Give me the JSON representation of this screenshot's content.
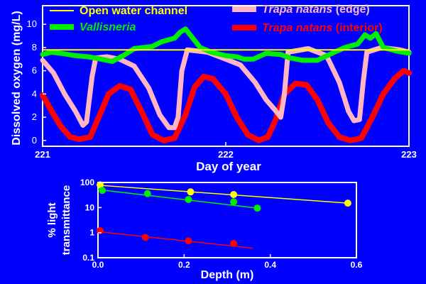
{
  "colors": {
    "background": "#0000ff",
    "axis": "#ffffff",
    "open_water": "#ffff00",
    "vallisneria": "#00ee00",
    "trapa_edge": "#ffb6c1",
    "trapa_interior": "#ff0000"
  },
  "chart_data": [
    {
      "type": "line",
      "xlabel": "Day of year",
      "ylabel": "Dissolved oxygen (mg/L)",
      "xlim": [
        221,
        223
      ],
      "ylim": [
        -0.5,
        11.6
      ],
      "xticks": [
        "221",
        "222",
        "223"
      ],
      "yticks": [
        "0",
        "2",
        "4",
        "6",
        "8",
        "10"
      ],
      "legend_position": "top",
      "legend": [
        {
          "key": "open",
          "name": "Open water channel",
          "italic_part": "",
          "rest": ""
        },
        {
          "key": "vall",
          "name": "",
          "italic_part": "Vallisneria",
          "rest": ""
        },
        {
          "key": "edge",
          "name": "",
          "italic_part": "Trapa natans",
          "rest": " (edge)"
        },
        {
          "key": "interior",
          "name": "",
          "italic_part": "Trapa natans",
          "rest": " (interior)"
        }
      ],
      "series": [
        {
          "key": "open",
          "name": "Open water channel",
          "points": [
            [
              221.0,
              7.8
            ],
            [
              223.0,
              7.8
            ]
          ]
        },
        {
          "key": "vall",
          "name": "Vallisneria",
          "points": [
            [
              221.0,
              7.4
            ],
            [
              221.05,
              7.6
            ],
            [
              221.1,
              7.5
            ],
            [
              221.18,
              7.3
            ],
            [
              221.25,
              7.2
            ],
            [
              221.32,
              7.0
            ],
            [
              221.38,
              6.8
            ],
            [
              221.44,
              7.3
            ],
            [
              221.5,
              7.9
            ],
            [
              221.6,
              8.1
            ],
            [
              221.65,
              8.5
            ],
            [
              221.72,
              8.8
            ],
            [
              221.75,
              9.3
            ],
            [
              221.78,
              9.6
            ],
            [
              221.82,
              8.8
            ],
            [
              221.86,
              8.0
            ],
            [
              221.92,
              7.6
            ],
            [
              222.0,
              7.3
            ],
            [
              222.06,
              7.2
            ],
            [
              222.1,
              7.0
            ],
            [
              222.15,
              7.0
            ],
            [
              222.22,
              7.5
            ],
            [
              222.3,
              7.4
            ],
            [
              222.35,
              7.1
            ],
            [
              222.42,
              6.9
            ],
            [
              222.5,
              6.9
            ],
            [
              222.58,
              7.5
            ],
            [
              222.65,
              8.0
            ],
            [
              222.72,
              8.3
            ],
            [
              222.76,
              9.1
            ],
            [
              222.79,
              8.8
            ],
            [
              222.82,
              9.2
            ],
            [
              222.86,
              8.0
            ],
            [
              222.93,
              7.7
            ],
            [
              223.0,
              7.5
            ]
          ]
        },
        {
          "key": "edge",
          "name": "Trapa natans (edge)",
          "points": [
            [
              221.0,
              6.9
            ],
            [
              221.06,
              5.8
            ],
            [
              221.12,
              4.0
            ],
            [
              221.18,
              2.5
            ],
            [
              221.22,
              1.3
            ],
            [
              221.24,
              1.6
            ],
            [
              221.27,
              5.5
            ],
            [
              221.29,
              7.1
            ],
            [
              221.35,
              7.2
            ],
            [
              221.42,
              7.0
            ],
            [
              221.5,
              6.4
            ],
            [
              221.58,
              4.5
            ],
            [
              221.64,
              2.2
            ],
            [
              221.69,
              1.1
            ],
            [
              221.72,
              1.1
            ],
            [
              221.74,
              2.0
            ],
            [
              221.76,
              6.0
            ],
            [
              221.79,
              7.8
            ],
            [
              221.9,
              7.6
            ],
            [
              222.0,
              7.0
            ],
            [
              222.08,
              6.5
            ],
            [
              222.16,
              5.0
            ],
            [
              222.22,
              3.5
            ],
            [
              222.27,
              2.6
            ],
            [
              222.3,
              2.0
            ],
            [
              222.32,
              4.0
            ],
            [
              222.34,
              7.6
            ],
            [
              222.45,
              7.9
            ],
            [
              222.55,
              7.3
            ],
            [
              222.62,
              5.0
            ],
            [
              222.67,
              2.5
            ],
            [
              222.7,
              1.7
            ],
            [
              222.73,
              1.8
            ],
            [
              222.75,
              5.0
            ],
            [
              222.77,
              7.6
            ],
            [
              222.85,
              8.0
            ],
            [
              222.95,
              7.8
            ],
            [
              223.0,
              7.6
            ]
          ]
        },
        {
          "key": "interior",
          "name": "Trapa natans (interior)",
          "points": [
            [
              221.0,
              3.9
            ],
            [
              221.05,
              2.5
            ],
            [
              221.1,
              1.2
            ],
            [
              221.15,
              0.3
            ],
            [
              221.2,
              0.1
            ],
            [
              221.26,
              0.3
            ],
            [
              221.32,
              2.5
            ],
            [
              221.36,
              4.0
            ],
            [
              221.42,
              4.7
            ],
            [
              221.48,
              4.4
            ],
            [
              221.54,
              2.5
            ],
            [
              221.6,
              0.5
            ],
            [
              221.66,
              0.0
            ],
            [
              221.72,
              0.2
            ],
            [
              221.78,
              2.2
            ],
            [
              221.83,
              4.6
            ],
            [
              221.88,
              5.5
            ],
            [
              221.93,
              5.3
            ],
            [
              222.0,
              4.0
            ],
            [
              222.06,
              2.0
            ],
            [
              222.12,
              0.5
            ],
            [
              222.18,
              0.0
            ],
            [
              222.23,
              0.3
            ],
            [
              222.27,
              1.7
            ],
            [
              222.32,
              4.0
            ],
            [
              222.38,
              4.9
            ],
            [
              222.44,
              4.8
            ],
            [
              222.5,
              3.5
            ],
            [
              222.56,
              1.5
            ],
            [
              222.62,
              0.3
            ],
            [
              222.68,
              0.0
            ],
            [
              222.74,
              0.2
            ],
            [
              222.8,
              2.0
            ],
            [
              222.86,
              4.0
            ],
            [
              222.92,
              5.3
            ],
            [
              222.97,
              6.0
            ],
            [
              223.0,
              5.8
            ]
          ]
        }
      ]
    },
    {
      "type": "scatter",
      "xlabel": "Depth (m)",
      "ylabel_lines": [
        "% light",
        "transmittance"
      ],
      "xlim": [
        0.0,
        0.6
      ],
      "ylim": [
        0.1,
        100
      ],
      "yscale": "log",
      "xticks": [
        "0.0",
        "0.2",
        "0.4",
        "0.6"
      ],
      "xtick_values": [
        0.0,
        0.2,
        0.4,
        0.6
      ],
      "yticks": [
        "100",
        "10",
        "1",
        "0.1"
      ],
      "ytick_values": [
        100,
        10,
        1,
        0.1
      ],
      "series": [
        {
          "key": "open",
          "points": [
            [
              0.005,
              80
            ],
            [
              0.215,
              42
            ],
            [
              0.315,
              33
            ],
            [
              0.58,
              15
            ]
          ],
          "fit": [
            [
              0.0,
              78
            ],
            [
              0.58,
              15
            ]
          ]
        },
        {
          "key": "vall",
          "points": [
            [
              0.01,
              48
            ],
            [
              0.115,
              36
            ],
            [
              0.21,
              21
            ],
            [
              0.315,
              17
            ],
            [
              0.37,
              9.5
            ]
          ],
          "fit": [
            [
              0.0,
              52
            ],
            [
              0.37,
              9.5
            ]
          ]
        },
        {
          "key": "interior",
          "points": [
            [
              0.005,
              1.2
            ],
            [
              0.11,
              0.65
            ],
            [
              0.21,
              0.47
            ],
            [
              0.315,
              0.37
            ]
          ],
          "fit": [
            [
              0.0,
              1.1
            ],
            [
              0.36,
              0.24
            ]
          ]
        }
      ]
    }
  ]
}
